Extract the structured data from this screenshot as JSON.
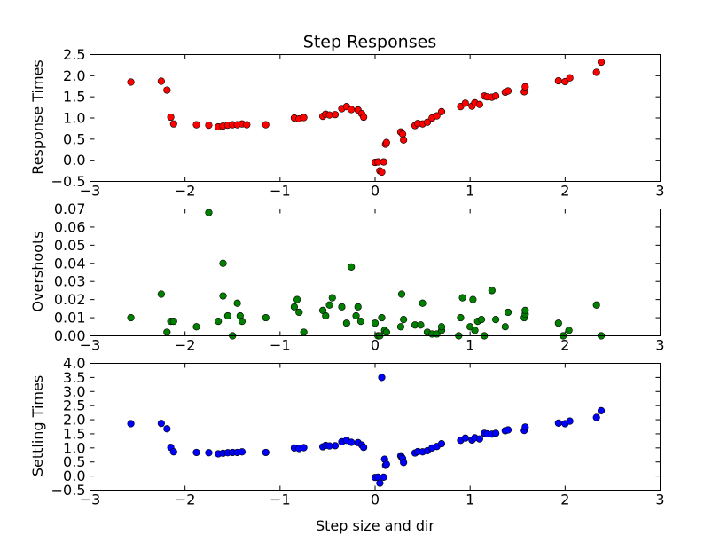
{
  "chart_data": [
    {
      "id": "response",
      "type": "scatter",
      "title": "Step Responses",
      "xlabel": "",
      "ylabel": "Response Times",
      "xlim": [
        -3,
        3
      ],
      "ylim": [
        -0.5,
        2.5
      ],
      "xticks": [
        -3,
        -2,
        -1,
        0,
        1,
        2,
        3
      ],
      "yticks": [
        -0.5,
        0.0,
        0.5,
        1.0,
        1.5,
        2.0,
        2.5
      ],
      "xticklabels": [
        "−3",
        "−2",
        "−1",
        "0",
        "1",
        "2",
        "3"
      ],
      "yticklabels": [
        "−0.5",
        "0.0",
        "0.5",
        "1.0",
        "1.5",
        "2.0",
        "2.5"
      ],
      "grid": false,
      "color": "#ff0000",
      "marker": "circle",
      "points": [
        [
          -2.57,
          1.85
        ],
        [
          -2.25,
          1.87
        ],
        [
          -2.19,
          1.66
        ],
        [
          -2.15,
          1.02
        ],
        [
          -2.12,
          0.86
        ],
        [
          -1.88,
          0.84
        ],
        [
          -1.75,
          0.83
        ],
        [
          -1.65,
          0.79
        ],
        [
          -1.6,
          0.81
        ],
        [
          -1.55,
          0.83
        ],
        [
          -1.5,
          0.84
        ],
        [
          -1.45,
          0.84
        ],
        [
          -1.4,
          0.86
        ],
        [
          -1.35,
          0.84
        ],
        [
          -1.15,
          0.84
        ],
        [
          -0.85,
          1.0
        ],
        [
          -0.8,
          0.98
        ],
        [
          -0.75,
          1.01
        ],
        [
          -0.55,
          1.04
        ],
        [
          -0.52,
          1.09
        ],
        [
          -0.48,
          1.07
        ],
        [
          -0.42,
          1.08
        ],
        [
          -0.35,
          1.22
        ],
        [
          -0.3,
          1.27
        ],
        [
          -0.25,
          1.2
        ],
        [
          -0.18,
          1.19
        ],
        [
          -0.14,
          1.1
        ],
        [
          -0.12,
          1.02
        ],
        [
          0.0,
          -0.05
        ],
        [
          0.03,
          -0.04
        ],
        [
          0.05,
          -0.25
        ],
        [
          0.07,
          -0.28
        ],
        [
          0.09,
          -0.04
        ],
        [
          0.11,
          0.38
        ],
        [
          0.12,
          0.42
        ],
        [
          0.27,
          0.67
        ],
        [
          0.29,
          0.62
        ],
        [
          0.3,
          0.48
        ],
        [
          0.42,
          0.82
        ],
        [
          0.45,
          0.87
        ],
        [
          0.5,
          0.86
        ],
        [
          0.55,
          0.9
        ],
        [
          0.6,
          1.0
        ],
        [
          0.65,
          1.05
        ],
        [
          0.7,
          1.15
        ],
        [
          0.9,
          1.27
        ],
        [
          0.95,
          1.35
        ],
        [
          1.02,
          1.28
        ],
        [
          1.05,
          1.36
        ],
        [
          1.1,
          1.32
        ],
        [
          1.15,
          1.52
        ],
        [
          1.18,
          1.5
        ],
        [
          1.23,
          1.49
        ],
        [
          1.27,
          1.52
        ],
        [
          1.37,
          1.61
        ],
        [
          1.4,
          1.64
        ],
        [
          1.57,
          1.62
        ],
        [
          1.58,
          1.74
        ],
        [
          1.93,
          1.88
        ],
        [
          2.0,
          1.86
        ],
        [
          2.05,
          1.95
        ],
        [
          2.33,
          2.08
        ],
        [
          2.38,
          2.32
        ]
      ]
    },
    {
      "id": "overshoot",
      "type": "scatter",
      "title": "",
      "xlabel": "",
      "ylabel": "Overshoots",
      "xlim": [
        -3,
        3
      ],
      "ylim": [
        0.0,
        0.07
      ],
      "xticks": [
        -3,
        -2,
        -1,
        0,
        1,
        2,
        3
      ],
      "yticks": [
        0.0,
        0.01,
        0.02,
        0.03,
        0.04,
        0.05,
        0.06,
        0.07
      ],
      "xticklabels": [
        "−3",
        "−2",
        "−1",
        "0",
        "1",
        "2",
        "3"
      ],
      "yticklabels": [
        "0.00",
        "0.01",
        "0.02",
        "0.03",
        "0.04",
        "0.05",
        "0.06",
        "0.07"
      ],
      "grid": false,
      "color": "#007f00",
      "marker": "circle",
      "points": [
        [
          -2.57,
          0.01
        ],
        [
          -2.25,
          0.023
        ],
        [
          -2.19,
          0.002
        ],
        [
          -2.15,
          0.008
        ],
        [
          -2.12,
          0.008
        ],
        [
          -1.88,
          0.005
        ],
        [
          -1.75,
          0.068
        ],
        [
          -1.65,
          0.008
        ],
        [
          -1.6,
          0.04
        ],
        [
          -1.6,
          0.022
        ],
        [
          -1.55,
          0.011
        ],
        [
          -1.5,
          0.0
        ],
        [
          -1.45,
          0.018
        ],
        [
          -1.42,
          0.011
        ],
        [
          -1.4,
          0.008
        ],
        [
          -1.15,
          0.01
        ],
        [
          -0.85,
          0.016
        ],
        [
          -0.82,
          0.02
        ],
        [
          -0.8,
          0.013
        ],
        [
          -0.75,
          0.002
        ],
        [
          -0.55,
          0.014
        ],
        [
          -0.52,
          0.011
        ],
        [
          -0.48,
          0.017
        ],
        [
          -0.45,
          0.021
        ],
        [
          -0.35,
          0.016
        ],
        [
          -0.3,
          0.007
        ],
        [
          -0.25,
          0.038
        ],
        [
          -0.2,
          0.011
        ],
        [
          -0.18,
          0.016
        ],
        [
          -0.15,
          0.008
        ],
        [
          0.0,
          0.007
        ],
        [
          0.03,
          0.0
        ],
        [
          0.05,
          0.0
        ],
        [
          0.07,
          0.01
        ],
        [
          0.1,
          0.003
        ],
        [
          0.12,
          0.002
        ],
        [
          0.27,
          0.005
        ],
        [
          0.28,
          0.023
        ],
        [
          0.3,
          0.009
        ],
        [
          0.42,
          0.006
        ],
        [
          0.48,
          0.006
        ],
        [
          0.5,
          0.018
        ],
        [
          0.55,
          0.002
        ],
        [
          0.6,
          0.001
        ],
        [
          0.65,
          0.001
        ],
        [
          0.7,
          0.003
        ],
        [
          0.7,
          0.005
        ],
        [
          0.88,
          0.0
        ],
        [
          0.9,
          0.01
        ],
        [
          0.92,
          0.021
        ],
        [
          1.0,
          0.005
        ],
        [
          1.03,
          0.02
        ],
        [
          1.05,
          0.003
        ],
        [
          1.08,
          0.008
        ],
        [
          1.12,
          0.009
        ],
        [
          1.15,
          0.0
        ],
        [
          1.23,
          0.025
        ],
        [
          1.27,
          0.009
        ],
        [
          1.37,
          0.005
        ],
        [
          1.4,
          0.013
        ],
        [
          1.57,
          0.01
        ],
        [
          1.58,
          0.012
        ],
        [
          1.58,
          0.014
        ],
        [
          1.93,
          0.007
        ],
        [
          1.98,
          0.0
        ],
        [
          2.04,
          0.003
        ],
        [
          2.33,
          0.017
        ],
        [
          2.38,
          0.0
        ]
      ]
    },
    {
      "id": "settling",
      "type": "scatter",
      "title": "",
      "xlabel": "Step size and dir",
      "ylabel": "Settling Times",
      "xlim": [
        -3,
        3
      ],
      "ylim": [
        -0.5,
        4.0
      ],
      "xticks": [
        -3,
        -2,
        -1,
        0,
        1,
        2,
        3
      ],
      "yticks": [
        -0.5,
        0.0,
        0.5,
        1.0,
        1.5,
        2.0,
        2.5,
        3.0,
        3.5,
        4.0
      ],
      "xticklabels": [
        "−3",
        "−2",
        "−1",
        "0",
        "1",
        "2",
        "3"
      ],
      "yticklabels": [
        "−0.5",
        "0.0",
        "0.5",
        "1.0",
        "1.5",
        "2.0",
        "2.5",
        "3.0",
        "3.5",
        "4.0"
      ],
      "grid": false,
      "color": "#0000ff",
      "marker": "circle",
      "points": [
        [
          -2.57,
          1.86
        ],
        [
          -2.25,
          1.87
        ],
        [
          -2.19,
          1.68
        ],
        [
          -2.15,
          1.02
        ],
        [
          -2.12,
          0.86
        ],
        [
          -1.88,
          0.84
        ],
        [
          -1.75,
          0.83
        ],
        [
          -1.65,
          0.79
        ],
        [
          -1.6,
          0.81
        ],
        [
          -1.55,
          0.83
        ],
        [
          -1.5,
          0.84
        ],
        [
          -1.45,
          0.84
        ],
        [
          -1.4,
          0.86
        ],
        [
          -1.15,
          0.84
        ],
        [
          -0.85,
          1.0
        ],
        [
          -0.8,
          0.98
        ],
        [
          -0.75,
          1.01
        ],
        [
          -0.55,
          1.04
        ],
        [
          -0.52,
          1.09
        ],
        [
          -0.48,
          1.07
        ],
        [
          -0.42,
          1.08
        ],
        [
          -0.35,
          1.22
        ],
        [
          -0.3,
          1.27
        ],
        [
          -0.25,
          1.2
        ],
        [
          -0.18,
          1.19
        ],
        [
          -0.14,
          1.1
        ],
        [
          -0.12,
          1.02
        ],
        [
          0.0,
          -0.05
        ],
        [
          0.03,
          -0.04
        ],
        [
          0.05,
          -0.25
        ],
        [
          0.07,
          3.5
        ],
        [
          0.09,
          -0.04
        ],
        [
          0.1,
          0.6
        ],
        [
          0.11,
          0.38
        ],
        [
          0.12,
          0.42
        ],
        [
          0.27,
          0.72
        ],
        [
          0.28,
          0.67
        ],
        [
          0.29,
          0.62
        ],
        [
          0.3,
          0.48
        ],
        [
          0.42,
          0.82
        ],
        [
          0.45,
          0.87
        ],
        [
          0.5,
          0.86
        ],
        [
          0.55,
          0.9
        ],
        [
          0.6,
          1.0
        ],
        [
          0.65,
          1.05
        ],
        [
          0.7,
          1.15
        ],
        [
          0.9,
          1.27
        ],
        [
          0.95,
          1.35
        ],
        [
          1.02,
          1.28
        ],
        [
          1.05,
          1.36
        ],
        [
          1.1,
          1.32
        ],
        [
          1.15,
          1.52
        ],
        [
          1.18,
          1.5
        ],
        [
          1.23,
          1.49
        ],
        [
          1.27,
          1.52
        ],
        [
          1.37,
          1.61
        ],
        [
          1.4,
          1.64
        ],
        [
          1.57,
          1.62
        ],
        [
          1.58,
          1.74
        ],
        [
          1.93,
          1.88
        ],
        [
          2.0,
          1.86
        ],
        [
          2.05,
          1.95
        ],
        [
          2.33,
          2.08
        ],
        [
          2.38,
          2.32
        ]
      ]
    }
  ]
}
